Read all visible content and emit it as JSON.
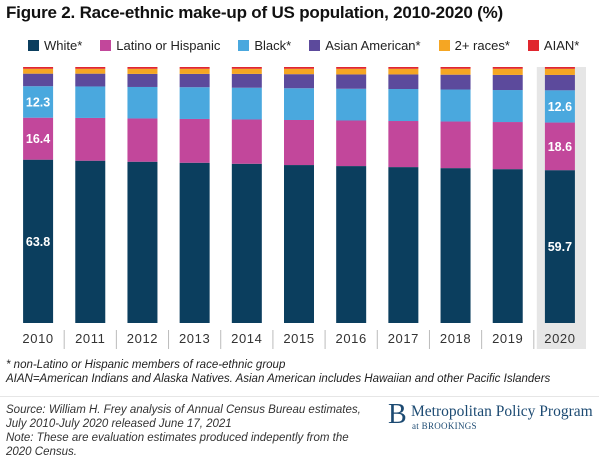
{
  "chart_data": {
    "type": "bar",
    "stacked": true,
    "title": "Figure 2. Race-ethnic make-up of US population, 2010-2020 (%)",
    "categories": [
      "2010",
      "2011",
      "2012",
      "2013",
      "2014",
      "2015",
      "2016",
      "2017",
      "2018",
      "2019",
      "2020"
    ],
    "ylim": [
      0,
      100
    ],
    "grid": false,
    "legend_position": "top",
    "highlighted_category": "2020",
    "series": [
      {
        "name": "White*",
        "color": "#0b3e5e",
        "values": [
          63.8,
          63.4,
          63.0,
          62.6,
          62.2,
          61.7,
          61.3,
          60.9,
          60.5,
          60.1,
          59.7
        ]
      },
      {
        "name": "Latino or Hispanic",
        "color": "#c2479b",
        "values": [
          16.4,
          16.7,
          16.9,
          17.1,
          17.3,
          17.6,
          17.8,
          18.0,
          18.2,
          18.4,
          18.6
        ]
      },
      {
        "name": "Black*",
        "color": "#4aa8de",
        "values": [
          12.3,
          12.3,
          12.3,
          12.4,
          12.4,
          12.4,
          12.4,
          12.5,
          12.5,
          12.5,
          12.6
        ]
      },
      {
        "name": "Asian American*",
        "color": "#5c4a9c",
        "values": [
          4.9,
          5.0,
          5.1,
          5.2,
          5.4,
          5.5,
          5.6,
          5.7,
          5.8,
          5.9,
          6.0
        ]
      },
      {
        "name": "2+ races*",
        "color": "#f5a623",
        "values": [
          1.9,
          1.9,
          2.0,
          2.0,
          2.0,
          2.1,
          2.2,
          2.2,
          2.3,
          2.4,
          2.4
        ]
      },
      {
        "name": "AIAN*",
        "color": "#e0262e",
        "values": [
          0.7,
          0.7,
          0.7,
          0.7,
          0.7,
          0.7,
          0.7,
          0.7,
          0.7,
          0.7,
          0.7
        ]
      }
    ],
    "data_labels": [
      {
        "category": "2010",
        "series": "White*",
        "text": "63.8"
      },
      {
        "category": "2010",
        "series": "Latino or Hispanic",
        "text": "16.4"
      },
      {
        "category": "2010",
        "series": "Black*",
        "text": "12.3"
      },
      {
        "category": "2020",
        "series": "White*",
        "text": "59.7"
      },
      {
        "category": "2020",
        "series": "Latino or Hispanic",
        "text": "18.6"
      },
      {
        "category": "2020",
        "series": "Black*",
        "text": "12.6"
      }
    ]
  },
  "notes": {
    "line1": "* non-Latino or Hispanic members of race-ethnic group",
    "line2": "AIAN=American Indians and Alaska Natives. Asian American includes Hawaiian and other Pacific Islanders"
  },
  "source": {
    "line1": "Source: William H. Frey analysis of Annual Census Bureau estimates,",
    "line2": "July 2010-July 2020 released June 17, 2021",
    "line3": "Note: These are evaluation estimates produced indepently from the",
    "line4": "2020 Census."
  },
  "brand": {
    "logo": "B",
    "name": "Metropolitan Policy Program",
    "sub": "at BROOKINGS"
  }
}
